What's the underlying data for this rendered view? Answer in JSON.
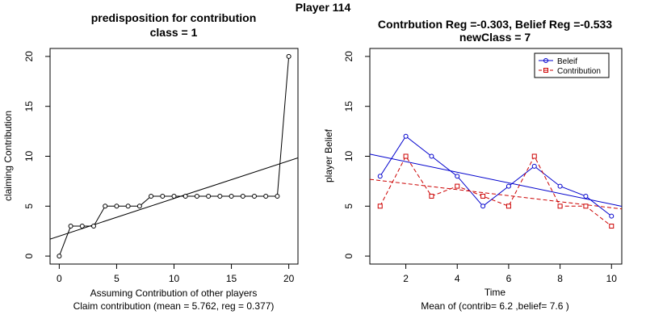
{
  "page": {
    "title": "Player 114"
  },
  "colors": {
    "belief": "#0000CD",
    "contribution": "#CC0000",
    "ink": "#000000"
  },
  "chart_data": [
    {
      "type": "line",
      "title": "predisposition for contribution",
      "subtitle": "class = 1",
      "xlabel": "Assuming Contribution of other players",
      "xlabel2": "Claim contribution (mean = 5.762, reg = 0.377)",
      "ylabel": "claiming Contribution",
      "xlim": [
        -0.8,
        20.8
      ],
      "ylim": [
        -0.8,
        20.8
      ],
      "xticks": [
        0,
        5,
        10,
        15,
        20
      ],
      "yticks": [
        0,
        5,
        10,
        15,
        20
      ],
      "x": [
        0,
        1,
        2,
        3,
        4,
        5,
        6,
        7,
        8,
        9,
        10,
        11,
        12,
        13,
        14,
        15,
        16,
        17,
        18,
        19,
        20
      ],
      "series": [
        {
          "values": [
            0,
            3,
            3,
            3,
            5,
            5,
            5,
            5,
            6,
            6,
            6,
            6,
            6,
            6,
            6,
            6,
            6,
            6,
            6,
            6,
            20
          ],
          "marker": "circle"
        }
      ],
      "regression_line": {
        "intercept": 2.0,
        "slope": 0.377
      },
      "grid": false
    },
    {
      "type": "line",
      "title": "Contrbution Reg =-0.303, Belief Reg =-0.533",
      "subtitle": "newClass = 7",
      "xlabel": "Time",
      "xlabel2": "Mean of (contrib= 6.2  ,belief= 7.6 )",
      "ylabel": "player Belief",
      "xlim": [
        0.6,
        10.4
      ],
      "ylim": [
        -0.8,
        20.8
      ],
      "xticks": [
        2,
        4,
        6,
        8,
        10
      ],
      "yticks": [
        0,
        5,
        10,
        15,
        20
      ],
      "x": [
        1,
        2,
        3,
        4,
        5,
        6,
        7,
        8,
        9,
        10
      ],
      "series": [
        {
          "name": "Beleif",
          "values": [
            8,
            12,
            10,
            8,
            5,
            7,
            9,
            7,
            6,
            4
          ],
          "color_key": "belief",
          "marker": "circle",
          "dash": "solid"
        },
        {
          "name": "Contribution",
          "values": [
            5,
            10,
            6,
            7,
            6,
            5,
            10,
            5,
            5,
            3
          ],
          "color_key": "contribution",
          "marker": "square",
          "dash": "dashed"
        }
      ],
      "regression_lines": [
        {
          "series": "Beleif",
          "intercept": 10.53,
          "slope": -0.533
        },
        {
          "series": "Contribution",
          "intercept": 7.87,
          "slope": -0.303
        }
      ],
      "legend": "top-right",
      "grid": false
    }
  ]
}
